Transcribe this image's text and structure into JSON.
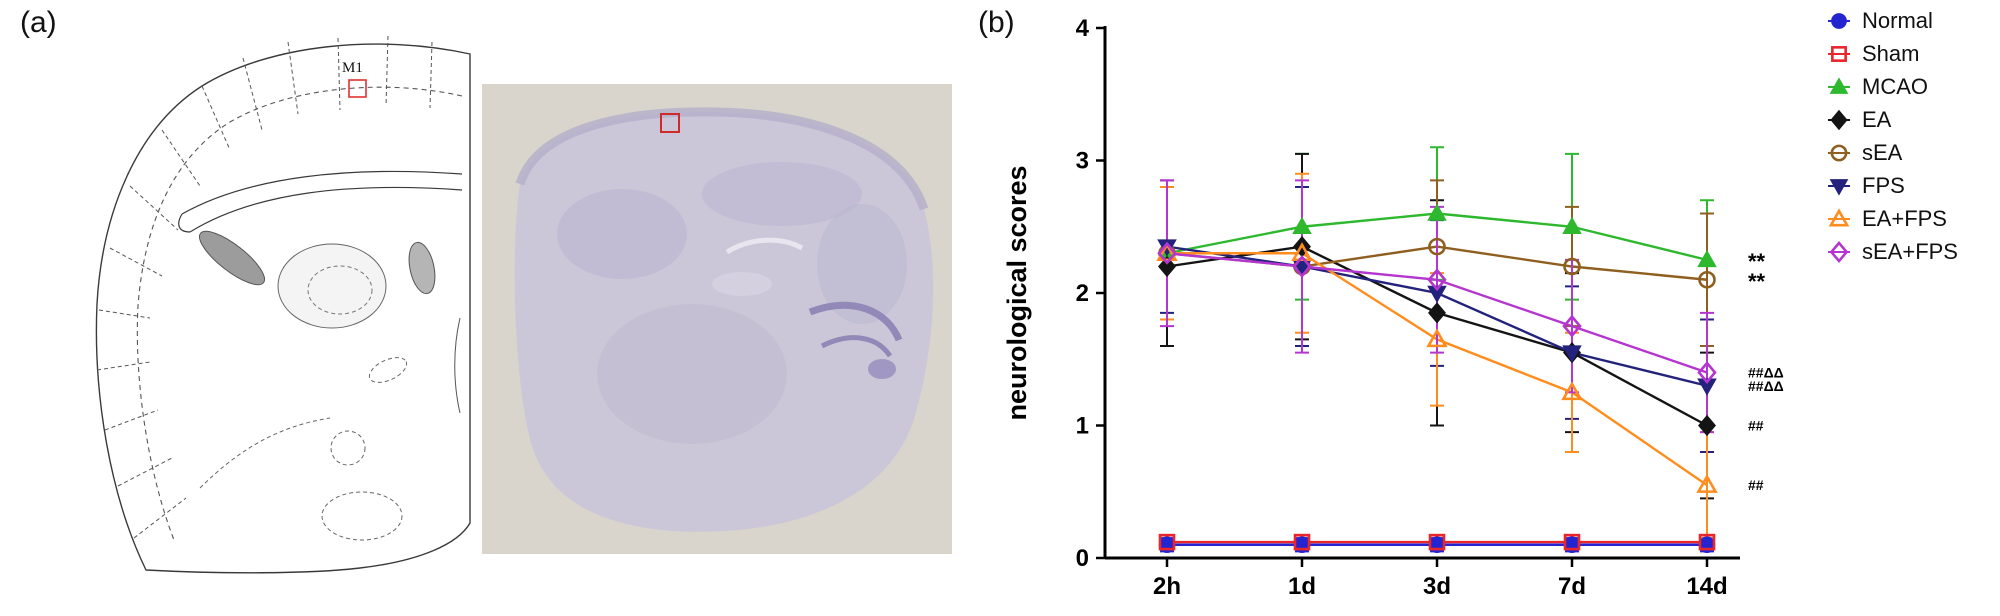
{
  "panels": {
    "a": {
      "label": "(a)",
      "atlas": {
        "region_label": "M1",
        "box_color": "#e03131"
      },
      "histology": {
        "box_color": "#cf2b2b",
        "bg_color": "#d9d5cc",
        "tissue_color": "#cbc7d8"
      }
    },
    "b": {
      "label": "(b)"
    }
  },
  "chart_data": {
    "type": "line",
    "title": "",
    "ylabel": "neurological scores",
    "xlabel": "",
    "categories": [
      "2h",
      "1d",
      "3d",
      "7d",
      "14d"
    ],
    "ylim": [
      0,
      4
    ],
    "yticks": [
      0,
      1,
      2,
      3,
      4
    ],
    "grid": false,
    "legend_position": "right-outside",
    "series": [
      {
        "name": "Normal",
        "color": "#2424d0",
        "marker": "circle-filled",
        "values": [
          0.1,
          0.1,
          0.1,
          0.1,
          0.1
        ],
        "errors": [
          0.05,
          0.05,
          0.05,
          0.05,
          0.05
        ]
      },
      {
        "name": "Sham",
        "color": "#e8262c",
        "marker": "square-open",
        "values": [
          0.12,
          0.12,
          0.12,
          0.12,
          0.12
        ],
        "errors": [
          0.05,
          0.05,
          0.05,
          0.05,
          0.05
        ]
      },
      {
        "name": "MCAO",
        "color": "#2eb82e",
        "marker": "triangle-filled",
        "values": [
          2.3,
          2.5,
          2.6,
          2.5,
          2.25
        ],
        "errors": [
          0.5,
          0.55,
          0.5,
          0.55,
          0.45
        ],
        "annotation": "**"
      },
      {
        "name": "EA",
        "color": "#141414",
        "marker": "diamond-filled",
        "values": [
          2.2,
          2.35,
          1.85,
          1.55,
          1.0
        ],
        "errors": [
          0.6,
          0.7,
          0.85,
          0.6,
          0.55
        ],
        "annotation": "##"
      },
      {
        "name": "sEA",
        "color": "#8f5f1f",
        "marker": "circle-open",
        "values": [
          2.3,
          2.2,
          2.35,
          2.2,
          2.1
        ],
        "errors": [
          0.5,
          0.6,
          0.5,
          0.45,
          0.5
        ],
        "annotation": "**"
      },
      {
        "name": "FPS",
        "color": "#23237d",
        "marker": "triangle-down-filled",
        "values": [
          2.35,
          2.2,
          2.0,
          1.55,
          1.3
        ],
        "errors": [
          0.5,
          0.6,
          0.55,
          0.5,
          0.5
        ],
        "annotation": "##ΔΔ"
      },
      {
        "name": "EA+FPS",
        "color": "#ff8c1e",
        "marker": "triangle-open",
        "values": [
          2.3,
          2.3,
          1.65,
          1.25,
          0.55
        ],
        "errors": [
          0.5,
          0.6,
          0.5,
          0.45,
          0.4
        ],
        "annotation": "##"
      },
      {
        "name": "sEA+FPS",
        "color": "#b535cf",
        "marker": "diamond-open",
        "values": [
          2.3,
          2.2,
          2.1,
          1.75,
          1.4
        ],
        "errors": [
          0.55,
          0.65,
          0.55,
          0.5,
          0.45
        ],
        "annotation": "##ΔΔ"
      }
    ]
  }
}
